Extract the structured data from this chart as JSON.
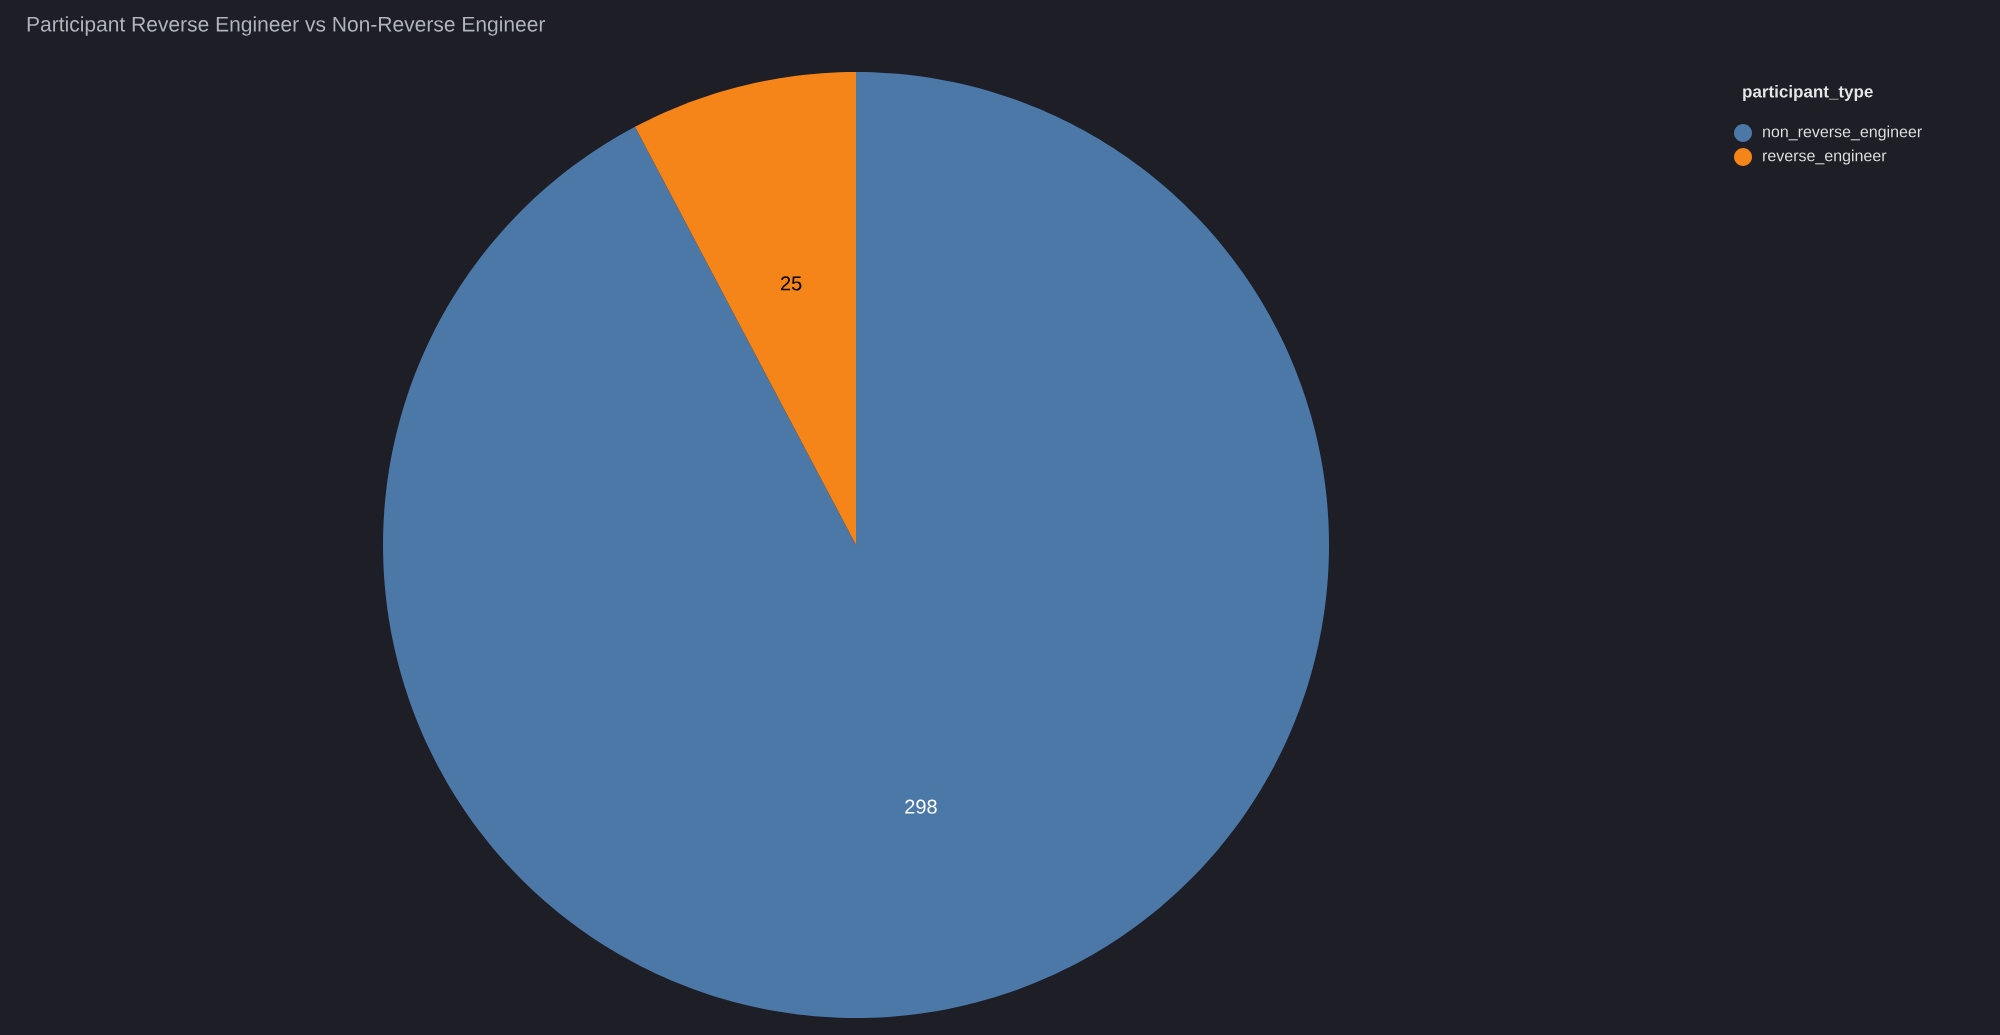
{
  "chart_data": {
    "type": "pie",
    "title": "Participant Reverse Engineer vs Non-Reverse Engineer",
    "legend_title": "participant_type",
    "categories": [
      "non_reverse_engineer",
      "reverse_engineer"
    ],
    "values": [
      298,
      25
    ],
    "colors": [
      "#4c78a8",
      "#f58518"
    ],
    "data_labels": true,
    "legend": "top right"
  }
}
